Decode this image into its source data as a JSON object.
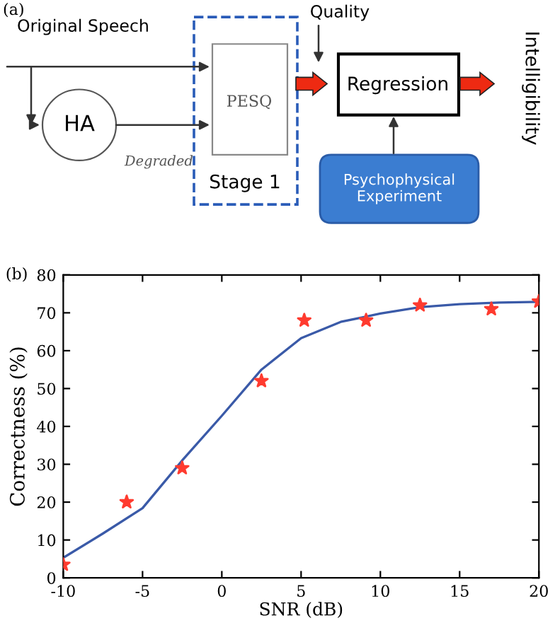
{
  "chart_data": [
    {
      "type": "other",
      "title": "(a)",
      "annotations": [
        "Original Speech",
        "HA",
        "Degraded",
        "PESQ",
        "Stage 1",
        "Quality",
        "Regression",
        "Psychophysical Experiment",
        "Intelligibility"
      ]
    },
    {
      "type": "scatter",
      "title": "(b)",
      "xlabel": "SNR (dB)",
      "ylabel": "Correctness (%)",
      "xlim": [
        -10,
        20
      ],
      "ylim": [
        0,
        80
      ],
      "xticks": [
        {
          "value": -10,
          "label": "-10"
        },
        {
          "value": -5,
          "label": "-5"
        },
        0,
        5,
        10,
        15,
        20
      ],
      "yticks": [
        0,
        10,
        20,
        30,
        40,
        50,
        60,
        70,
        80
      ],
      "grid": false,
      "legend": false,
      "series": [
        {
          "type": "scatter",
          "color": "#ff3b2f",
          "marker": "star",
          "x": [
            -10,
            -6,
            -2.5,
            2.5,
            5.2,
            9.1,
            12.5,
            17,
            20
          ],
          "values": [
            3.5,
            20,
            29,
            52,
            68,
            68,
            72,
            71,
            73
          ]
        },
        {
          "type": "line",
          "color": "#3a5aa8",
          "line_style": "solid",
          "x": [
            -10,
            -7.5,
            -5,
            -2.5,
            0,
            2.5,
            5,
            7.5,
            10,
            12.5,
            15,
            17.5,
            20
          ],
          "values": [
            5.3,
            11.7,
            18.4,
            31,
            42.8,
            55,
            63.3,
            67.6,
            69.8,
            71.5,
            72.3,
            72.7,
            72.9
          ]
        }
      ]
    }
  ]
}
